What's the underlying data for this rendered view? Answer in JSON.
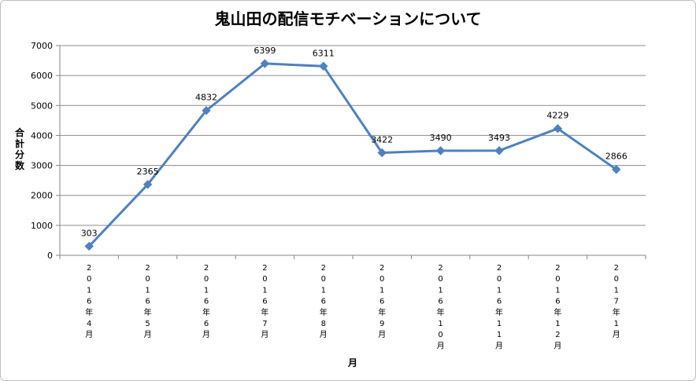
{
  "chart_data": {
    "type": "line",
    "title": "鬼山田の配信モチベーションについて",
    "xlabel": "月",
    "ylabel": "合計分数",
    "ylim": [
      0,
      7000
    ],
    "yticks": [
      0,
      1000,
      2000,
      3000,
      4000,
      5000,
      6000,
      7000
    ],
    "grid": true,
    "legend": "none",
    "categories": [
      "2016年4月",
      "2016年5月",
      "2016年6月",
      "2016年7月",
      "2016年8月",
      "2016年9月",
      "2016年10月",
      "2016年11月",
      "2016年12月",
      "2017年1月"
    ],
    "series": [
      {
        "values": [
          303,
          2365,
          4832,
          6399,
          6311,
          3422,
          3490,
          3493,
          4229,
          2866
        ],
        "color": "#4f81bd"
      }
    ]
  }
}
